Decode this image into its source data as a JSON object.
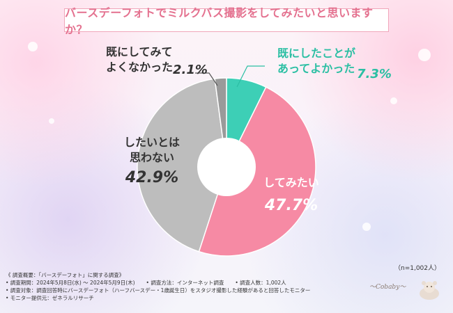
{
  "title": "バースデーフォトでミルクバス撮影をしてみたいと思いますか？",
  "sample_size": "（n=1,002人）",
  "chart_data": {
    "type": "pie",
    "slices": [
      {
        "label_lines": [
          "既にしたことが",
          "あってよかった"
        ],
        "value": 7.3,
        "value_text": "7.3%",
        "color": "#3dcfb6",
        "label_color": "#2bbfa3"
      },
      {
        "label_lines": [
          "してみたい"
        ],
        "value": 47.7,
        "value_text": "47.7%",
        "color": "#f68aa4",
        "label_color": "#ffffff"
      },
      {
        "label_lines": [
          "したいとは",
          "思わない"
        ],
        "value": 42.9,
        "value_text": "42.9%",
        "color": "#bdbdbd",
        "label_color": "#333333"
      },
      {
        "label_lines": [
          "既にしてみて",
          "よくなかった"
        ],
        "value": 2.1,
        "value_text": "2.1%",
        "color": "#9a9a9a",
        "label_color": "#333333"
      }
    ]
  },
  "footer": {
    "line1": "《 調査概要：「バースデーフォト」に関する調査》",
    "line2_a": "• 調査期間：2024年5月8日(水) ～ 2024年5月9日(木)",
    "line2_b": "• 調査方法：インターネット調査",
    "line2_c": "• 調査人数：1,002人",
    "line3": "• 調査対象：調査回答時にバースデーフォト（ハーフバースデー・1歳誕生日）をスタジオ撮影した経験があると回答したモニター",
    "line4": "• モニター提供元：ゼネラルリサーチ"
  }
}
